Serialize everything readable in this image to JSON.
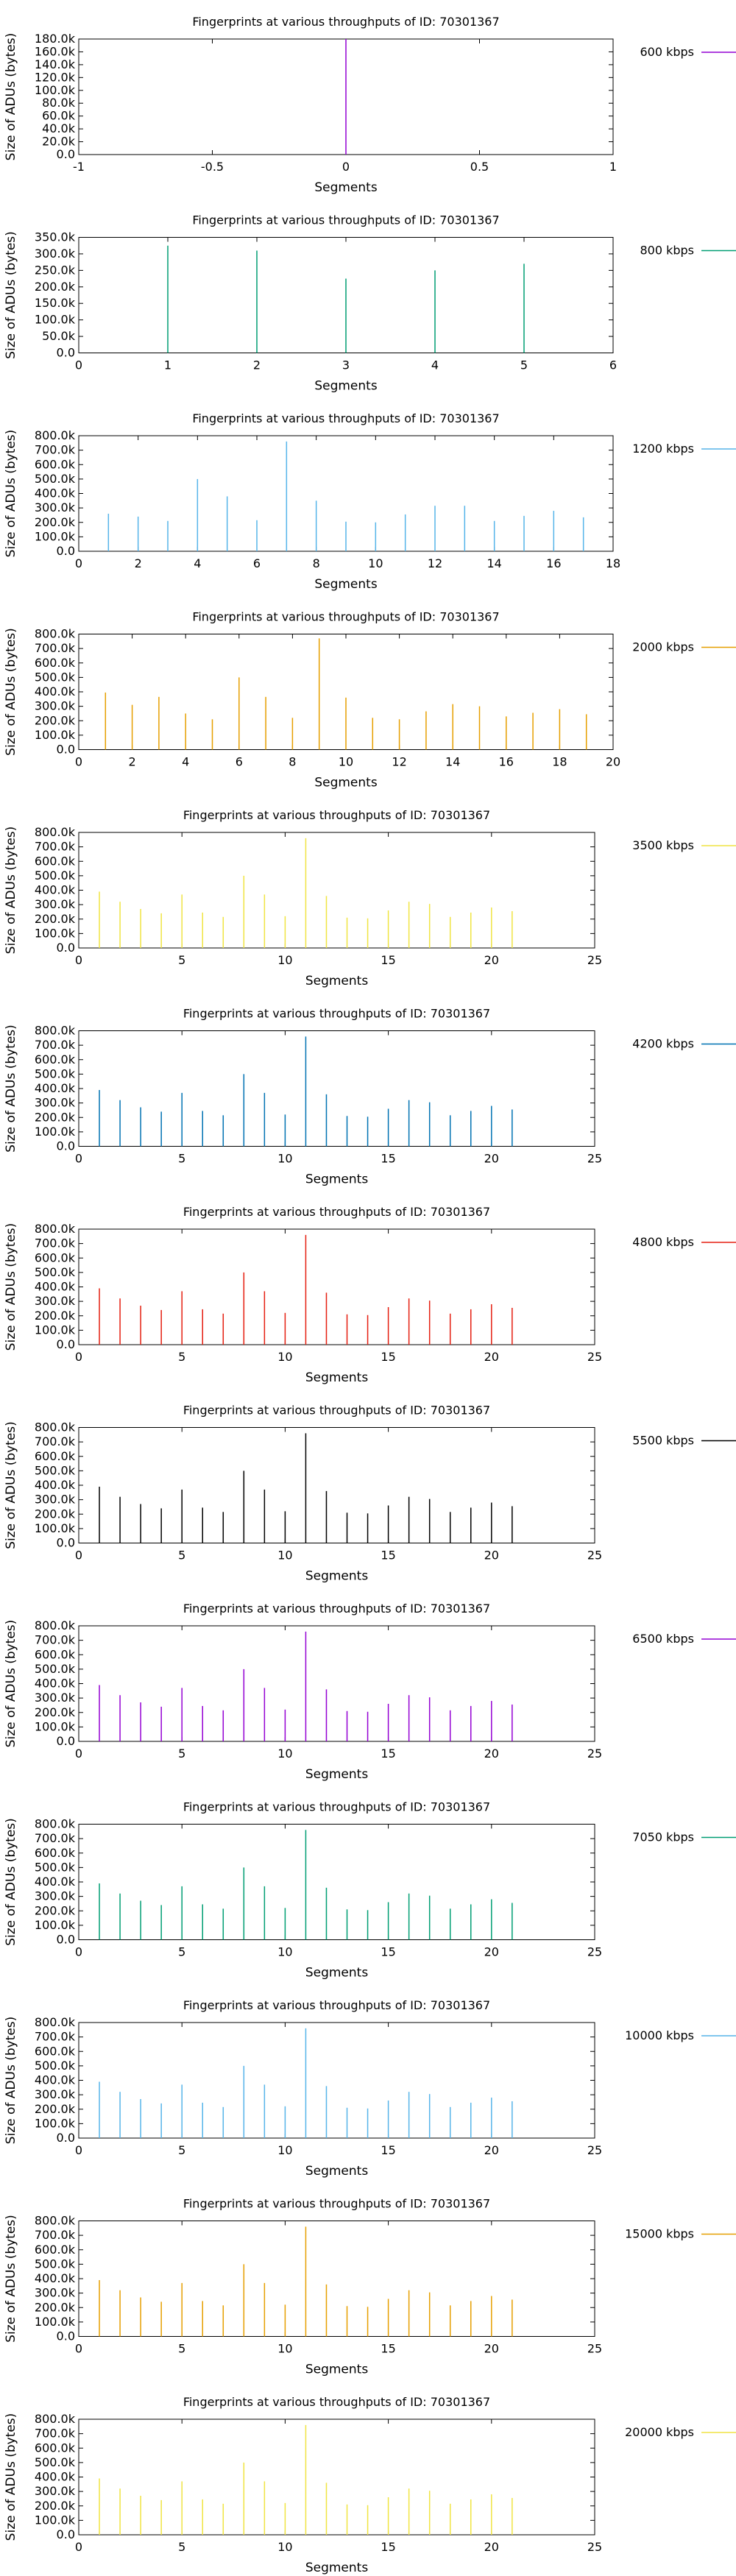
{
  "chart_data": [
    {
      "type": "bar",
      "title": "Fingerprints at various throughputs of ID: 70301367",
      "xlabel": "Segments",
      "ylabel": "Size of ADUs (bytes)",
      "xlim": [
        -1,
        1
      ],
      "xticks": [
        "-1",
        "-0.5",
        "0",
        "0.5",
        "1"
      ],
      "ylim": [
        0,
        180000
      ],
      "yticks": [
        "0.0",
        "20.0k",
        "40.0k",
        "60.0k",
        "80.0k",
        "100.0k",
        "120.0k",
        "140.0k",
        "160.0k",
        "180.0k"
      ],
      "legend_position": "top-right",
      "grid": false,
      "series": [
        {
          "name": "600 kbps",
          "color": "#9400d3",
          "x": [
            0
          ],
          "values": [
            180000
          ]
        }
      ]
    },
    {
      "type": "bar",
      "title": "Fingerprints at various throughputs of ID: 70301367",
      "xlabel": "Segments",
      "ylabel": "Size of ADUs (bytes)",
      "xlim": [
        0,
        6
      ],
      "xticks": [
        "0",
        "1",
        "2",
        "3",
        "4",
        "5",
        "6"
      ],
      "ylim": [
        0,
        350000
      ],
      "yticks": [
        "0.0",
        "50.0k",
        "100.0k",
        "150.0k",
        "200.0k",
        "250.0k",
        "300.0k",
        "350.0k"
      ],
      "legend_position": "top-right",
      "grid": false,
      "series": [
        {
          "name": "800 kbps",
          "color": "#009e73",
          "x": [
            1,
            2,
            3,
            4,
            5
          ],
          "values": [
            325000,
            310000,
            225000,
            250000,
            270000
          ]
        }
      ]
    },
    {
      "type": "bar",
      "title": "Fingerprints at various throughputs of ID: 70301367",
      "xlabel": "Segments",
      "ylabel": "Size of ADUs (bytes)",
      "xlim": [
        0,
        18
      ],
      "xticks": [
        "0",
        "2",
        "4",
        "6",
        "8",
        "10",
        "12",
        "14",
        "16",
        "18"
      ],
      "ylim": [
        0,
        800000
      ],
      "yticks": [
        "0.0",
        "100.0k",
        "200.0k",
        "300.0k",
        "400.0k",
        "500.0k",
        "600.0k",
        "700.0k",
        "800.0k"
      ],
      "legend_position": "top-right",
      "grid": false,
      "series": [
        {
          "name": "1200 kbps",
          "color": "#56b4e9",
          "x": [
            1,
            2,
            3,
            4,
            5,
            6,
            7,
            8,
            9,
            10,
            11,
            12,
            13,
            14,
            15,
            16,
            17
          ],
          "values": [
            260000,
            240000,
            210000,
            500000,
            380000,
            215000,
            760000,
            350000,
            205000,
            200000,
            255000,
            315000,
            315000,
            210000,
            245000,
            280000,
            235000
          ]
        }
      ]
    },
    {
      "type": "bar",
      "title": "Fingerprints at various throughputs of ID: 70301367",
      "xlabel": "Segments",
      "ylabel": "Size of ADUs (bytes)",
      "xlim": [
        0,
        20
      ],
      "xticks": [
        "0",
        "2",
        "4",
        "6",
        "8",
        "10",
        "12",
        "14",
        "16",
        "18",
        "20"
      ],
      "ylim": [
        0,
        800000
      ],
      "yticks": [
        "0.0",
        "100.0k",
        "200.0k",
        "300.0k",
        "400.0k",
        "500.0k",
        "600.0k",
        "700.0k",
        "800.0k"
      ],
      "legend_position": "top-right",
      "grid": false,
      "series": [
        {
          "name": "2000 kbps",
          "color": "#e69f00",
          "x": [
            1,
            2,
            3,
            4,
            5,
            6,
            7,
            8,
            9,
            10,
            11,
            12,
            13,
            14,
            15,
            16,
            17,
            18,
            19
          ],
          "values": [
            395000,
            310000,
            365000,
            250000,
            210000,
            500000,
            365000,
            220000,
            770000,
            360000,
            220000,
            210000,
            265000,
            315000,
            300000,
            230000,
            255000,
            280000,
            245000
          ]
        }
      ]
    },
    {
      "type": "bar",
      "title": "Fingerprints at various throughputs of ID: 70301367",
      "xlabel": "Segments",
      "ylabel": "Size of ADUs (bytes)",
      "xlim": [
        0,
        25
      ],
      "xticks": [
        "0",
        "5",
        "10",
        "15",
        "20",
        "25"
      ],
      "ylim": [
        0,
        800000
      ],
      "yticks": [
        "0.0",
        "100.0k",
        "200.0k",
        "300.0k",
        "400.0k",
        "500.0k",
        "600.0k",
        "700.0k",
        "800.0k"
      ],
      "legend_position": "top-right",
      "grid": false,
      "series": [
        {
          "name": "3500 kbps",
          "color": "#f0e442",
          "x": [
            1,
            2,
            3,
            4,
            5,
            6,
            7,
            8,
            9,
            10,
            11,
            12,
            13,
            14,
            15,
            16,
            17,
            18,
            19,
            20,
            21
          ],
          "values": [
            390000,
            320000,
            270000,
            240000,
            370000,
            245000,
            215000,
            500000,
            370000,
            220000,
            760000,
            360000,
            210000,
            205000,
            260000,
            320000,
            305000,
            215000,
            245000,
            280000,
            255000
          ]
        }
      ]
    },
    {
      "type": "bar",
      "title": "Fingerprints at various throughputs of ID: 70301367",
      "xlabel": "Segments",
      "ylabel": "Size of ADUs (bytes)",
      "xlim": [
        0,
        25
      ],
      "xticks": [
        "0",
        "5",
        "10",
        "15",
        "20",
        "25"
      ],
      "ylim": [
        0,
        800000
      ],
      "yticks": [
        "0.0",
        "100.0k",
        "200.0k",
        "300.0k",
        "400.0k",
        "500.0k",
        "600.0k",
        "700.0k",
        "800.0k"
      ],
      "legend_position": "top-right",
      "grid": false,
      "series": [
        {
          "name": "4200 kbps",
          "color": "#0072b2",
          "x": [
            1,
            2,
            3,
            4,
            5,
            6,
            7,
            8,
            9,
            10,
            11,
            12,
            13,
            14,
            15,
            16,
            17,
            18,
            19,
            20,
            21
          ],
          "values": [
            390000,
            320000,
            270000,
            240000,
            370000,
            245000,
            215000,
            500000,
            370000,
            220000,
            760000,
            360000,
            210000,
            205000,
            260000,
            320000,
            305000,
            215000,
            245000,
            280000,
            255000
          ]
        }
      ]
    },
    {
      "type": "bar",
      "title": "Fingerprints at various throughputs of ID: 70301367",
      "xlabel": "Segments",
      "ylabel": "Size of ADUs (bytes)",
      "xlim": [
        0,
        25
      ],
      "xticks": [
        "0",
        "5",
        "10",
        "15",
        "20",
        "25"
      ],
      "ylim": [
        0,
        800000
      ],
      "yticks": [
        "0.0",
        "100.0k",
        "200.0k",
        "300.0k",
        "400.0k",
        "500.0k",
        "600.0k",
        "700.0k",
        "800.0k"
      ],
      "legend_position": "top-right",
      "grid": false,
      "series": [
        {
          "name": "4800 kbps",
          "color": "#e51e10",
          "x": [
            1,
            2,
            3,
            4,
            5,
            6,
            7,
            8,
            9,
            10,
            11,
            12,
            13,
            14,
            15,
            16,
            17,
            18,
            19,
            20,
            21
          ],
          "values": [
            390000,
            320000,
            270000,
            240000,
            370000,
            245000,
            215000,
            500000,
            370000,
            220000,
            760000,
            360000,
            210000,
            205000,
            260000,
            320000,
            305000,
            215000,
            245000,
            280000,
            255000
          ]
        }
      ]
    },
    {
      "type": "bar",
      "title": "Fingerprints at various throughputs of ID: 70301367",
      "xlabel": "Segments",
      "ylabel": "Size of ADUs (bytes)",
      "xlim": [
        0,
        25
      ],
      "xticks": [
        "0",
        "5",
        "10",
        "15",
        "20",
        "25"
      ],
      "ylim": [
        0,
        800000
      ],
      "yticks": [
        "0.0",
        "100.0k",
        "200.0k",
        "300.0k",
        "400.0k",
        "500.0k",
        "600.0k",
        "700.0k",
        "800.0k"
      ],
      "legend_position": "top-right",
      "grid": false,
      "series": [
        {
          "name": "5500 kbps",
          "color": "#000000",
          "x": [
            1,
            2,
            3,
            4,
            5,
            6,
            7,
            8,
            9,
            10,
            11,
            12,
            13,
            14,
            15,
            16,
            17,
            18,
            19,
            20,
            21
          ],
          "values": [
            390000,
            320000,
            270000,
            240000,
            370000,
            245000,
            215000,
            500000,
            370000,
            220000,
            760000,
            360000,
            210000,
            205000,
            260000,
            320000,
            305000,
            215000,
            245000,
            280000,
            255000
          ]
        }
      ]
    },
    {
      "type": "bar",
      "title": "Fingerprints at various throughputs of ID: 70301367",
      "xlabel": "Segments",
      "ylabel": "Size of ADUs (bytes)",
      "xlim": [
        0,
        25
      ],
      "xticks": [
        "0",
        "5",
        "10",
        "15",
        "20",
        "25"
      ],
      "ylim": [
        0,
        800000
      ],
      "yticks": [
        "0.0",
        "100.0k",
        "200.0k",
        "300.0k",
        "400.0k",
        "500.0k",
        "600.0k",
        "700.0k",
        "800.0k"
      ],
      "legend_position": "top-right",
      "grid": false,
      "series": [
        {
          "name": "6500 kbps",
          "color": "#9400d3",
          "x": [
            1,
            2,
            3,
            4,
            5,
            6,
            7,
            8,
            9,
            10,
            11,
            12,
            13,
            14,
            15,
            16,
            17,
            18,
            19,
            20,
            21
          ],
          "values": [
            390000,
            320000,
            270000,
            240000,
            370000,
            245000,
            215000,
            500000,
            370000,
            220000,
            760000,
            360000,
            210000,
            205000,
            260000,
            320000,
            305000,
            215000,
            245000,
            280000,
            255000
          ]
        }
      ]
    },
    {
      "type": "bar",
      "title": "Fingerprints at various throughputs of ID: 70301367",
      "xlabel": "Segments",
      "ylabel": "Size of ADUs (bytes)",
      "xlim": [
        0,
        25
      ],
      "xticks": [
        "0",
        "5",
        "10",
        "15",
        "20",
        "25"
      ],
      "ylim": [
        0,
        800000
      ],
      "yticks": [
        "0.0",
        "100.0k",
        "200.0k",
        "300.0k",
        "400.0k",
        "500.0k",
        "600.0k",
        "700.0k",
        "800.0k"
      ],
      "legend_position": "top-right",
      "grid": false,
      "series": [
        {
          "name": "7050 kbps",
          "color": "#009e73",
          "x": [
            1,
            2,
            3,
            4,
            5,
            6,
            7,
            8,
            9,
            10,
            11,
            12,
            13,
            14,
            15,
            16,
            17,
            18,
            19,
            20,
            21
          ],
          "values": [
            390000,
            320000,
            270000,
            240000,
            370000,
            245000,
            215000,
            500000,
            370000,
            220000,
            760000,
            360000,
            210000,
            205000,
            260000,
            320000,
            305000,
            215000,
            245000,
            280000,
            255000
          ]
        }
      ]
    },
    {
      "type": "bar",
      "title": "Fingerprints at various throughputs of ID: 70301367",
      "xlabel": "Segments",
      "ylabel": "Size of ADUs (bytes)",
      "xlim": [
        0,
        25
      ],
      "xticks": [
        "0",
        "5",
        "10",
        "15",
        "20",
        "25"
      ],
      "ylim": [
        0,
        800000
      ],
      "yticks": [
        "0.0",
        "100.0k",
        "200.0k",
        "300.0k",
        "400.0k",
        "500.0k",
        "600.0k",
        "700.0k",
        "800.0k"
      ],
      "legend_position": "top-right",
      "grid": false,
      "series": [
        {
          "name": "10000 kbps",
          "color": "#56b4e9",
          "x": [
            1,
            2,
            3,
            4,
            5,
            6,
            7,
            8,
            9,
            10,
            11,
            12,
            13,
            14,
            15,
            16,
            17,
            18,
            19,
            20,
            21
          ],
          "values": [
            390000,
            320000,
            270000,
            240000,
            370000,
            245000,
            215000,
            500000,
            370000,
            220000,
            760000,
            360000,
            210000,
            205000,
            260000,
            320000,
            305000,
            215000,
            245000,
            280000,
            255000
          ]
        }
      ]
    },
    {
      "type": "bar",
      "title": "Fingerprints at various throughputs of ID: 70301367",
      "xlabel": "Segments",
      "ylabel": "Size of ADUs (bytes)",
      "xlim": [
        0,
        25
      ],
      "xticks": [
        "0",
        "5",
        "10",
        "15",
        "20",
        "25"
      ],
      "ylim": [
        0,
        800000
      ],
      "yticks": [
        "0.0",
        "100.0k",
        "200.0k",
        "300.0k",
        "400.0k",
        "500.0k",
        "600.0k",
        "700.0k",
        "800.0k"
      ],
      "legend_position": "top-right",
      "grid": false,
      "series": [
        {
          "name": "15000 kbps",
          "color": "#e69f00",
          "x": [
            1,
            2,
            3,
            4,
            5,
            6,
            7,
            8,
            9,
            10,
            11,
            12,
            13,
            14,
            15,
            16,
            17,
            18,
            19,
            20,
            21
          ],
          "values": [
            390000,
            320000,
            270000,
            240000,
            370000,
            245000,
            215000,
            500000,
            370000,
            220000,
            760000,
            360000,
            210000,
            205000,
            260000,
            320000,
            305000,
            215000,
            245000,
            280000,
            255000
          ]
        }
      ]
    },
    {
      "type": "bar",
      "title": "Fingerprints at various throughputs of ID: 70301367",
      "xlabel": "Segments",
      "ylabel": "Size of ADUs (bytes)",
      "xlim": [
        0,
        25
      ],
      "xticks": [
        "0",
        "5",
        "10",
        "15",
        "20",
        "25"
      ],
      "ylim": [
        0,
        800000
      ],
      "yticks": [
        "0.0",
        "100.0k",
        "200.0k",
        "300.0k",
        "400.0k",
        "500.0k",
        "600.0k",
        "700.0k",
        "800.0k"
      ],
      "legend_position": "top-right",
      "grid": false,
      "series": [
        {
          "name": "20000 kbps",
          "color": "#f0e442",
          "x": [
            1,
            2,
            3,
            4,
            5,
            6,
            7,
            8,
            9,
            10,
            11,
            12,
            13,
            14,
            15,
            16,
            17,
            18,
            19,
            20,
            21
          ],
          "values": [
            390000,
            320000,
            270000,
            240000,
            370000,
            245000,
            215000,
            500000,
            370000,
            220000,
            760000,
            360000,
            210000,
            205000,
            260000,
            320000,
            305000,
            215000,
            245000,
            280000,
            255000
          ]
        }
      ]
    }
  ]
}
